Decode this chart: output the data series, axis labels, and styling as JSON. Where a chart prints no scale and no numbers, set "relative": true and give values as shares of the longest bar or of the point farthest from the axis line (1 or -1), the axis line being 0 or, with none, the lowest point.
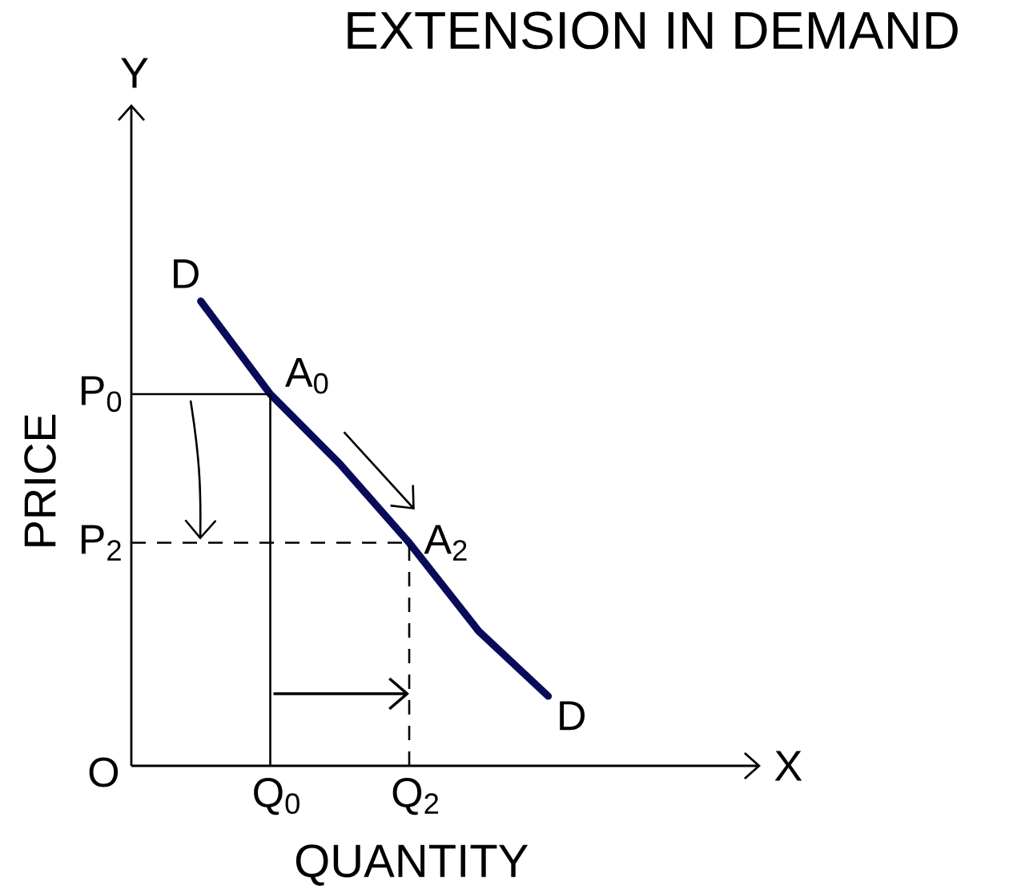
{
  "chart_data": {
    "type": "line",
    "relative": true,
    "title": "EXTENSION IN DEMAND",
    "xlabel": "QUANTITY",
    "ylabel": "PRICE",
    "categories": [
      null,
      null,
      "Q$_{0}$",
      null,
      "Q$_{2}$",
      null,
      null
    ],
    "series": [
      {
        "color": "#0a0a5a",
        "values": [
          null,
          1,
          0.8,
          0.65,
          0.48,
          0.29,
          0.15
        ]
      }
    ],
    "ref_lines": [
      {
        "axis": "y",
        "value": 0.8,
        "label": "P$_{0}$",
        "color": "#000000",
        "line_style": "solid"
      },
      {
        "axis": "y",
        "value": 0.48,
        "label": "P$_{2}$",
        "color": "#000000",
        "line_style": "dashed"
      },
      {
        "axis": "x",
        "value": "Q$_{0}$",
        "color": "#000000",
        "line_style": "solid"
      },
      {
        "axis": "x",
        "value": "Q$_{2}$",
        "color": "#000000",
        "line_style": "dashed"
      }
    ],
    "annotations": [
      "Y",
      "X",
      "O",
      "D",
      "A$_{0}$",
      "A$_{2}$",
      "D"
    ]
  }
}
